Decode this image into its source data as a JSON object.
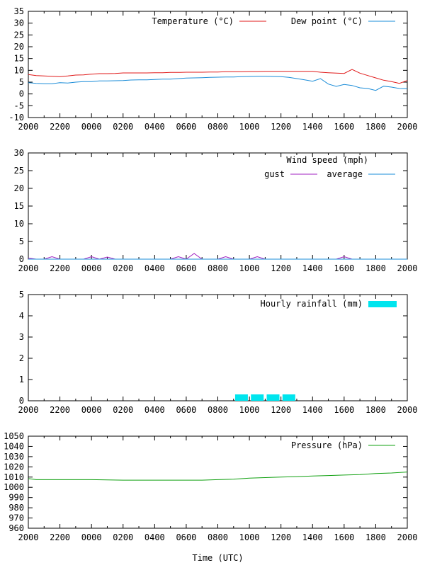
{
  "chart_data": [
    {
      "type": "line",
      "title": "",
      "xlabel": "",
      "ylabel": "",
      "xlim": [
        0,
        24
      ],
      "ylim": [
        -10,
        35
      ],
      "yticks": [
        -10,
        -5,
        0,
        5,
        10,
        15,
        20,
        25,
        30,
        35
      ],
      "xtick_labels": [
        "2000",
        "2200",
        "0000",
        "0200",
        "0400",
        "0600",
        "0800",
        "1000",
        "1200",
        "1400",
        "1600",
        "1800",
        "2000"
      ],
      "legend_position": "top-right",
      "series": [
        {
          "name": "Temperature (°C)",
          "color": "#e01a1a",
          "x": [
            0,
            0.5,
            1,
            1.5,
            2,
            2.5,
            3,
            3.5,
            4,
            4.5,
            5,
            5.5,
            6,
            6.5,
            7,
            7.5,
            8,
            8.5,
            9,
            9.5,
            10,
            10.5,
            11,
            11.5,
            12,
            12.5,
            13,
            13.5,
            14,
            14.5,
            15,
            15.5,
            16,
            16.5,
            17,
            17.5,
            18,
            18.5,
            19,
            19.5,
            20,
            20.5,
            21,
            21.5,
            22,
            22.5,
            23,
            23.5,
            24
          ],
          "y": [
            8.2,
            7.8,
            7.6,
            7.5,
            7.3,
            7.6,
            8.0,
            8.1,
            8.4,
            8.6,
            8.6,
            8.7,
            8.9,
            8.9,
            8.9,
            8.9,
            9.0,
            9.0,
            9.1,
            9.1,
            9.2,
            9.2,
            9.2,
            9.3,
            9.3,
            9.4,
            9.4,
            9.4,
            9.5,
            9.5,
            9.6,
            9.6,
            9.6,
            9.6,
            9.6,
            9.6,
            9.6,
            9.2,
            9.0,
            8.8,
            8.7,
            10.4,
            8.8,
            7.8,
            6.8,
            5.8,
            5.2,
            4.5,
            5.7
          ]
        },
        {
          "name": "Dew point (°C)",
          "color": "#1a8cd8",
          "x": [
            0,
            0.5,
            1,
            1.5,
            2,
            2.5,
            3,
            3.5,
            4,
            4.5,
            5,
            5.5,
            6,
            6.5,
            7,
            7.5,
            8,
            8.5,
            9,
            9.5,
            10,
            10.5,
            11,
            11.5,
            12,
            12.5,
            13,
            13.5,
            14,
            14.5,
            15,
            15.5,
            16,
            16.5,
            17,
            17.5,
            18,
            18.5,
            19,
            19.5,
            20,
            20.5,
            21,
            21.5,
            22,
            22.5,
            23,
            23.5,
            24
          ],
          "y": [
            4.8,
            4.5,
            4.3,
            4.3,
            4.8,
            4.6,
            5.0,
            5.2,
            5.2,
            5.5,
            5.5,
            5.6,
            5.7,
            5.9,
            6.0,
            6.0,
            6.1,
            6.3,
            6.3,
            6.5,
            6.7,
            6.8,
            6.9,
            7.0,
            7.1,
            7.2,
            7.2,
            7.3,
            7.4,
            7.5,
            7.5,
            7.4,
            7.3,
            7.0,
            6.5,
            6.0,
            5.4,
            6.5,
            4.2,
            3.2,
            4.0,
            3.6,
            2.6,
            2.3,
            1.5,
            3.3,
            2.9,
            2.3,
            2.2
          ]
        }
      ]
    },
    {
      "type": "line",
      "title": "Wind speed (mph)",
      "xlabel": "",
      "ylabel": "",
      "xlim": [
        0,
        24
      ],
      "ylim": [
        0,
        30
      ],
      "yticks": [
        0,
        5,
        10,
        15,
        20,
        25,
        30
      ],
      "xtick_labels": [
        "2000",
        "2200",
        "0000",
        "0200",
        "0400",
        "0600",
        "0800",
        "1000",
        "1200",
        "1400",
        "1600",
        "1800",
        "2000"
      ],
      "legend_position": "top-right",
      "series": [
        {
          "name": "gust",
          "color": "#a020c0",
          "x": [
            0,
            0.5,
            1,
            1.5,
            2,
            2.5,
            3,
            3.5,
            4,
            4.5,
            5,
            5.5,
            6,
            6.5,
            7,
            7.5,
            8,
            8.5,
            9,
            9.5,
            10,
            10.5,
            11,
            11.5,
            12,
            12.5,
            13,
            13.5,
            14,
            14.5,
            15,
            15.5,
            16,
            16.5,
            17,
            17.5,
            18,
            18.5,
            19,
            19.5,
            20,
            20.5,
            21,
            21.5,
            22,
            22.5,
            23,
            23.5,
            24
          ],
          "y": [
            0.3,
            0,
            0,
            0.7,
            0,
            0,
            0,
            0,
            0.7,
            0,
            0.6,
            0,
            0,
            0,
            0,
            0,
            0,
            0,
            0,
            0.7,
            0,
            1.6,
            0,
            0,
            0,
            0.7,
            0,
            0,
            0,
            0.7,
            0,
            0,
            0,
            0,
            0,
            0,
            0,
            0,
            0,
            0,
            0.7,
            0,
            0,
            0,
            0,
            0,
            0,
            0,
            0
          ]
        },
        {
          "name": "average",
          "color": "#1a8cd8",
          "x": [
            0,
            24
          ],
          "y": [
            0,
            0
          ]
        }
      ]
    },
    {
      "type": "bar",
      "title": "",
      "xlabel": "",
      "ylabel": "",
      "xlim": [
        0,
        24
      ],
      "ylim": [
        0,
        5
      ],
      "yticks": [
        0,
        1,
        2,
        3,
        4,
        5
      ],
      "xtick_labels": [
        "2000",
        "2200",
        "0000",
        "0200",
        "0400",
        "0600",
        "0800",
        "1000",
        "1200",
        "1400",
        "1600",
        "1800",
        "2000"
      ],
      "legend_position": "top-right",
      "series": [
        {
          "name": "Hourly rainfall (mm)",
          "color": "#00e5ee",
          "x": [
            13.5,
            14.5,
            15.5,
            16.5
          ],
          "y": [
            0.3,
            0.3,
            0.3,
            0.3
          ]
        }
      ]
    },
    {
      "type": "line",
      "title": "",
      "xlabel": "Time (UTC)",
      "ylabel": "",
      "xlim": [
        0,
        24
      ],
      "ylim": [
        960,
        1050
      ],
      "yticks": [
        960,
        970,
        980,
        990,
        1000,
        1010,
        1020,
        1030,
        1040,
        1050
      ],
      "xtick_labels": [
        "2000",
        "2200",
        "0000",
        "0200",
        "0400",
        "0600",
        "0800",
        "1000",
        "1200",
        "1400",
        "1600",
        "1800",
        "2000"
      ],
      "legend_position": "top-right",
      "series": [
        {
          "name": "Pressure (hPa)",
          "color": "#10a010",
          "x": [
            0,
            0.5,
            2,
            4,
            6,
            8,
            10,
            11,
            12,
            13,
            14,
            15,
            16,
            17,
            18,
            19,
            20,
            21,
            22,
            23,
            24
          ],
          "y": [
            1008.5,
            1007.5,
            1007.5,
            1007.5,
            1007,
            1007,
            1007,
            1007,
            1007.5,
            1008,
            1009,
            1009.5,
            1010,
            1010.5,
            1011,
            1011.5,
            1012,
            1012.5,
            1013.5,
            1014,
            1015
          ]
        }
      ]
    }
  ]
}
